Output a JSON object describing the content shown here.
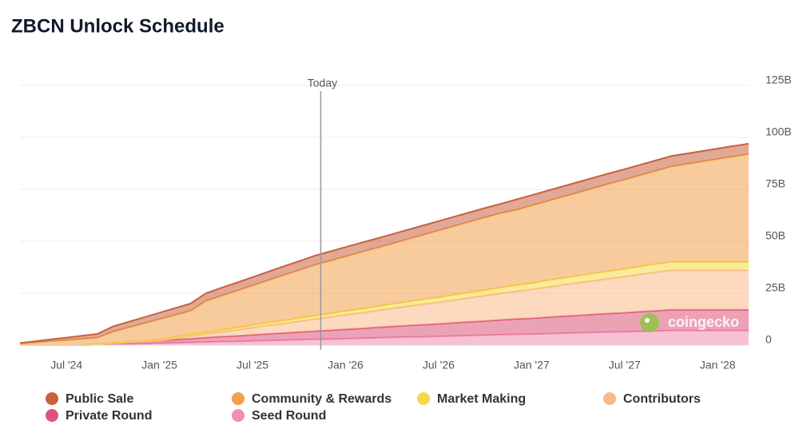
{
  "chart_data": {
    "type": "stacked_area",
    "title": "ZBCN Unlock Schedule",
    "annotation": "Today",
    "watermark": "coingecko",
    "x": [
      null,
      null,
      null,
      "Jul '24",
      null,
      null,
      null,
      null,
      null,
      "Jan '25",
      null,
      null,
      null,
      null,
      null,
      "Jul '25",
      null,
      null,
      null,
      null,
      null,
      "Jan '26",
      null,
      null,
      null,
      null,
      null,
      "Jul '26",
      null,
      null,
      null,
      null,
      null,
      "Jan '27",
      null,
      null,
      null,
      null,
      null,
      "Jul '27",
      null,
      null,
      null,
      null,
      null,
      "Jan '28",
      null,
      null
    ],
    "ylim": [
      0,
      125
    ],
    "yticks": [
      {
        "value": 0,
        "label": "0"
      },
      {
        "value": 25,
        "label": "25B"
      },
      {
        "value": 50,
        "label": "50B"
      },
      {
        "value": 75,
        "label": "75B"
      },
      {
        "value": 100,
        "label": "100B"
      },
      {
        "value": 125,
        "label": "125B"
      }
    ],
    "grid": true,
    "series": [
      {
        "name": "Public Sale",
        "color": "#c8613e",
        "values": [
          0.3,
          0.6,
          0.9,
          1.2,
          1.5,
          1.8,
          2.5,
          2.7,
          2.9,
          3.1,
          3.3,
          3.5,
          3.7,
          3.8,
          3.9,
          4.0,
          4.1,
          4.2,
          4.3,
          4.4,
          4.5,
          4.5,
          4.5,
          4.5,
          4.5,
          4.5,
          4.5,
          4.5,
          4.5,
          4.5,
          4.5,
          4.5,
          5,
          5,
          5,
          5,
          5,
          5,
          5,
          5,
          5,
          5,
          5,
          5,
          5,
          5,
          5,
          5
        ]
      },
      {
        "name": "Community & Rewards",
        "color": "#f0a04b",
        "values": [
          0.7,
          1.3,
          1.9,
          2.4,
          3.0,
          3.0,
          5.4,
          6.8,
          8.3,
          9.8,
          10.6,
          11.5,
          15.2,
          16.5,
          17.8,
          19.1,
          20.4,
          21.9,
          23.1,
          24.5,
          25.4,
          26.3,
          27.4,
          28.2,
          29.1,
          30.1,
          31.1,
          32.2,
          33.1,
          34.0,
          35.0,
          35.8,
          36.3,
          37.4,
          38.2,
          39.1,
          40.1,
          41.1,
          42.1,
          43.0,
          43.9,
          44.9,
          46.0,
          47.2,
          48.4,
          49.6,
          50.8,
          52.0
        ]
      },
      {
        "name": "Market Making",
        "color": "#f5d94a",
        "values": [
          0,
          0,
          0,
          0,
          0,
          0.1,
          0.2,
          0.3,
          0.4,
          0.5,
          0.6,
          0.7,
          0.8,
          0.9,
          1.1,
          1.2,
          1.3,
          1.4,
          1.5,
          1.6,
          1.7,
          1.8,
          1.9,
          2.0,
          2.1,
          2.2,
          2.3,
          2.4,
          2.5,
          2.6,
          2.7,
          2.8,
          2.9,
          3.0,
          3.2,
          3.3,
          3.4,
          3.5,
          3.6,
          3.7,
          3.8,
          3.9,
          4,
          4,
          4,
          4,
          4,
          4
        ]
      },
      {
        "name": "Contributors",
        "color": "#f9b98a",
        "values": [
          0,
          0,
          0,
          0,
          0,
          0,
          0,
          0,
          0,
          0,
          0.6,
          1.2,
          1.7,
          2.3,
          2.9,
          3.5,
          4.1,
          4.6,
          5.2,
          5.8,
          6.4,
          7.0,
          7.5,
          8.1,
          8.7,
          9.3,
          9.9,
          10.4,
          11.0,
          11.6,
          12.2,
          12.8,
          13.3,
          13.9,
          14.5,
          15.1,
          15.7,
          16.2,
          16.8,
          17.4,
          18.0,
          18.6,
          19,
          19,
          19,
          19,
          19,
          19
        ]
      },
      {
        "name": "Private Round",
        "color": "#dc5579",
        "values": [
          0,
          0,
          0,
          0,
          0,
          0.3,
          0.5,
          0.8,
          1.1,
          1.3,
          1.6,
          1.8,
          2.1,
          2.4,
          2.6,
          2.9,
          3.2,
          3.4,
          3.7,
          3.9,
          4.2,
          4.5,
          4.7,
          5.0,
          5.3,
          5.5,
          5.8,
          6.0,
          6.3,
          6.6,
          6.8,
          7.1,
          7.4,
          7.6,
          7.9,
          8.2,
          8.4,
          8.7,
          8.9,
          9.2,
          9.5,
          9.7,
          10,
          10,
          10,
          10,
          10,
          10
        ]
      },
      {
        "name": "Seed Round",
        "color": "#f38db5",
        "values": [
          0,
          0,
          0,
          0,
          0,
          0.2,
          0.4,
          0.6,
          0.7,
          0.9,
          1.1,
          1.3,
          1.5,
          1.7,
          1.8,
          2.0,
          2.2,
          2.4,
          2.6,
          2.8,
          2.9,
          3.1,
          3.3,
          3.5,
          3.7,
          3.9,
          4.0,
          4.2,
          4.4,
          4.6,
          4.8,
          5.0,
          5.2,
          5.3,
          5.5,
          5.7,
          5.9,
          6.1,
          6.3,
          6.4,
          6.6,
          6.8,
          7,
          7,
          7,
          7,
          7,
          7
        ]
      }
    ]
  }
}
